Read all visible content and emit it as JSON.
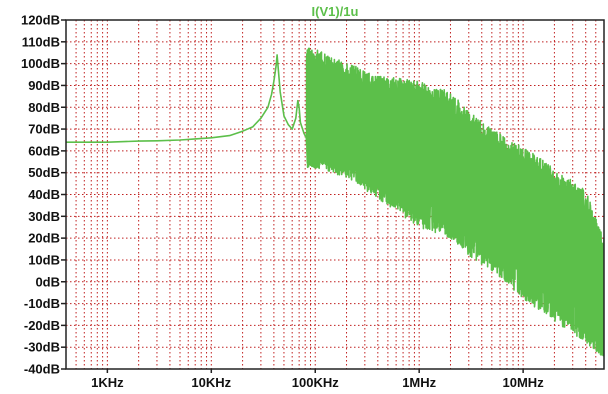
{
  "chart_data": {
    "type": "line",
    "title": "I(V1)/1u",
    "xlabel": "",
    "ylabel": "",
    "x_scale": "log",
    "xlim_hz": [
      400,
      60000000
    ],
    "ylim_db": [
      -40,
      120
    ],
    "grid": "dotted-red",
    "series_color": "#5CBF4A",
    "y_ticks": [
      {
        "value": 120,
        "label": "120dB"
      },
      {
        "value": 110,
        "label": "110dB"
      },
      {
        "value": 100,
        "label": "100dB"
      },
      {
        "value": 90,
        "label": "90dB"
      },
      {
        "value": 80,
        "label": "80dB"
      },
      {
        "value": 70,
        "label": "70dB"
      },
      {
        "value": 60,
        "label": "60dB"
      },
      {
        "value": 50,
        "label": "50dB"
      },
      {
        "value": 40,
        "label": "40dB"
      },
      {
        "value": 30,
        "label": "30dB"
      },
      {
        "value": 20,
        "label": "20dB"
      },
      {
        "value": 10,
        "label": "10dB"
      },
      {
        "value": 0,
        "label": "0dB"
      },
      {
        "value": -10,
        "label": "-10dB"
      },
      {
        "value": -20,
        "label": "-20dB"
      },
      {
        "value": -30,
        "label": "-30dB"
      },
      {
        "value": -40,
        "label": "-40dB"
      }
    ],
    "x_ticks": [
      {
        "value": 1000,
        "label": "1KHz"
      },
      {
        "value": 10000,
        "label": "10KHz"
      },
      {
        "value": 100000,
        "label": "100KHz"
      },
      {
        "value": 1000000,
        "label": "1MHz"
      },
      {
        "value": 10000000,
        "label": "10MHz"
      }
    ],
    "series": [
      {
        "points": [
          [
            400,
            64
          ],
          [
            1000,
            64
          ],
          [
            2000,
            64.5
          ],
          [
            3000,
            64.6
          ],
          [
            5000,
            65
          ],
          [
            7000,
            65.5
          ],
          [
            10000,
            66
          ],
          [
            15000,
            67
          ],
          [
            20000,
            69
          ],
          [
            25000,
            71
          ],
          [
            30000,
            75
          ],
          [
            35000,
            80
          ],
          [
            38000,
            86
          ],
          [
            40000,
            92
          ],
          [
            42000,
            99
          ],
          [
            43000,
            104
          ],
          [
            44000,
            98
          ],
          [
            46000,
            87
          ],
          [
            50000,
            76
          ],
          [
            55000,
            72
          ],
          [
            60000,
            70
          ],
          [
            65000,
            75
          ],
          [
            68000,
            83
          ],
          [
            70000,
            80
          ],
          [
            72000,
            73
          ],
          [
            78000,
            68
          ],
          [
            82000,
            66
          ]
        ],
        "peaks": [
          {
            "f": 87000,
            "db": 107
          },
          {
            "f": 130000,
            "db": 103
          },
          {
            "f": 175000,
            "db": 100
          },
          {
            "f": 220000,
            "db": 98
          },
          {
            "f": 265000,
            "db": 96
          },
          {
            "f": 310000,
            "db": 95
          },
          {
            "f": 355000,
            "db": 94
          },
          {
            "f": 400000,
            "db": 94
          },
          {
            "f": 445000,
            "db": 93
          },
          {
            "f": 490000,
            "db": 93
          },
          {
            "f": 535000,
            "db": 92
          },
          {
            "f": 580000,
            "db": 91
          }
        ],
        "envelope": [
          {
            "f": 100000,
            "max": 107,
            "min": 52
          },
          {
            "f": 200000,
            "max": 100,
            "min": 48
          },
          {
            "f": 500000,
            "max": 94,
            "min": 35
          },
          {
            "f": 1000000,
            "max": 92,
            "min": 25
          },
          {
            "f": 2000000,
            "max": 87,
            "min": 20
          },
          {
            "f": 3000000,
            "max": 78,
            "min": 12
          },
          {
            "f": 5000000,
            "max": 70,
            "min": 5
          },
          {
            "f": 10000000,
            "max": 62,
            "min": -8
          },
          {
            "f": 20000000,
            "max": 52,
            "min": -18
          },
          {
            "f": 40000000,
            "max": 42,
            "min": -28
          },
          {
            "f": 60000000,
            "max": 20,
            "min": -35
          }
        ]
      }
    ]
  }
}
